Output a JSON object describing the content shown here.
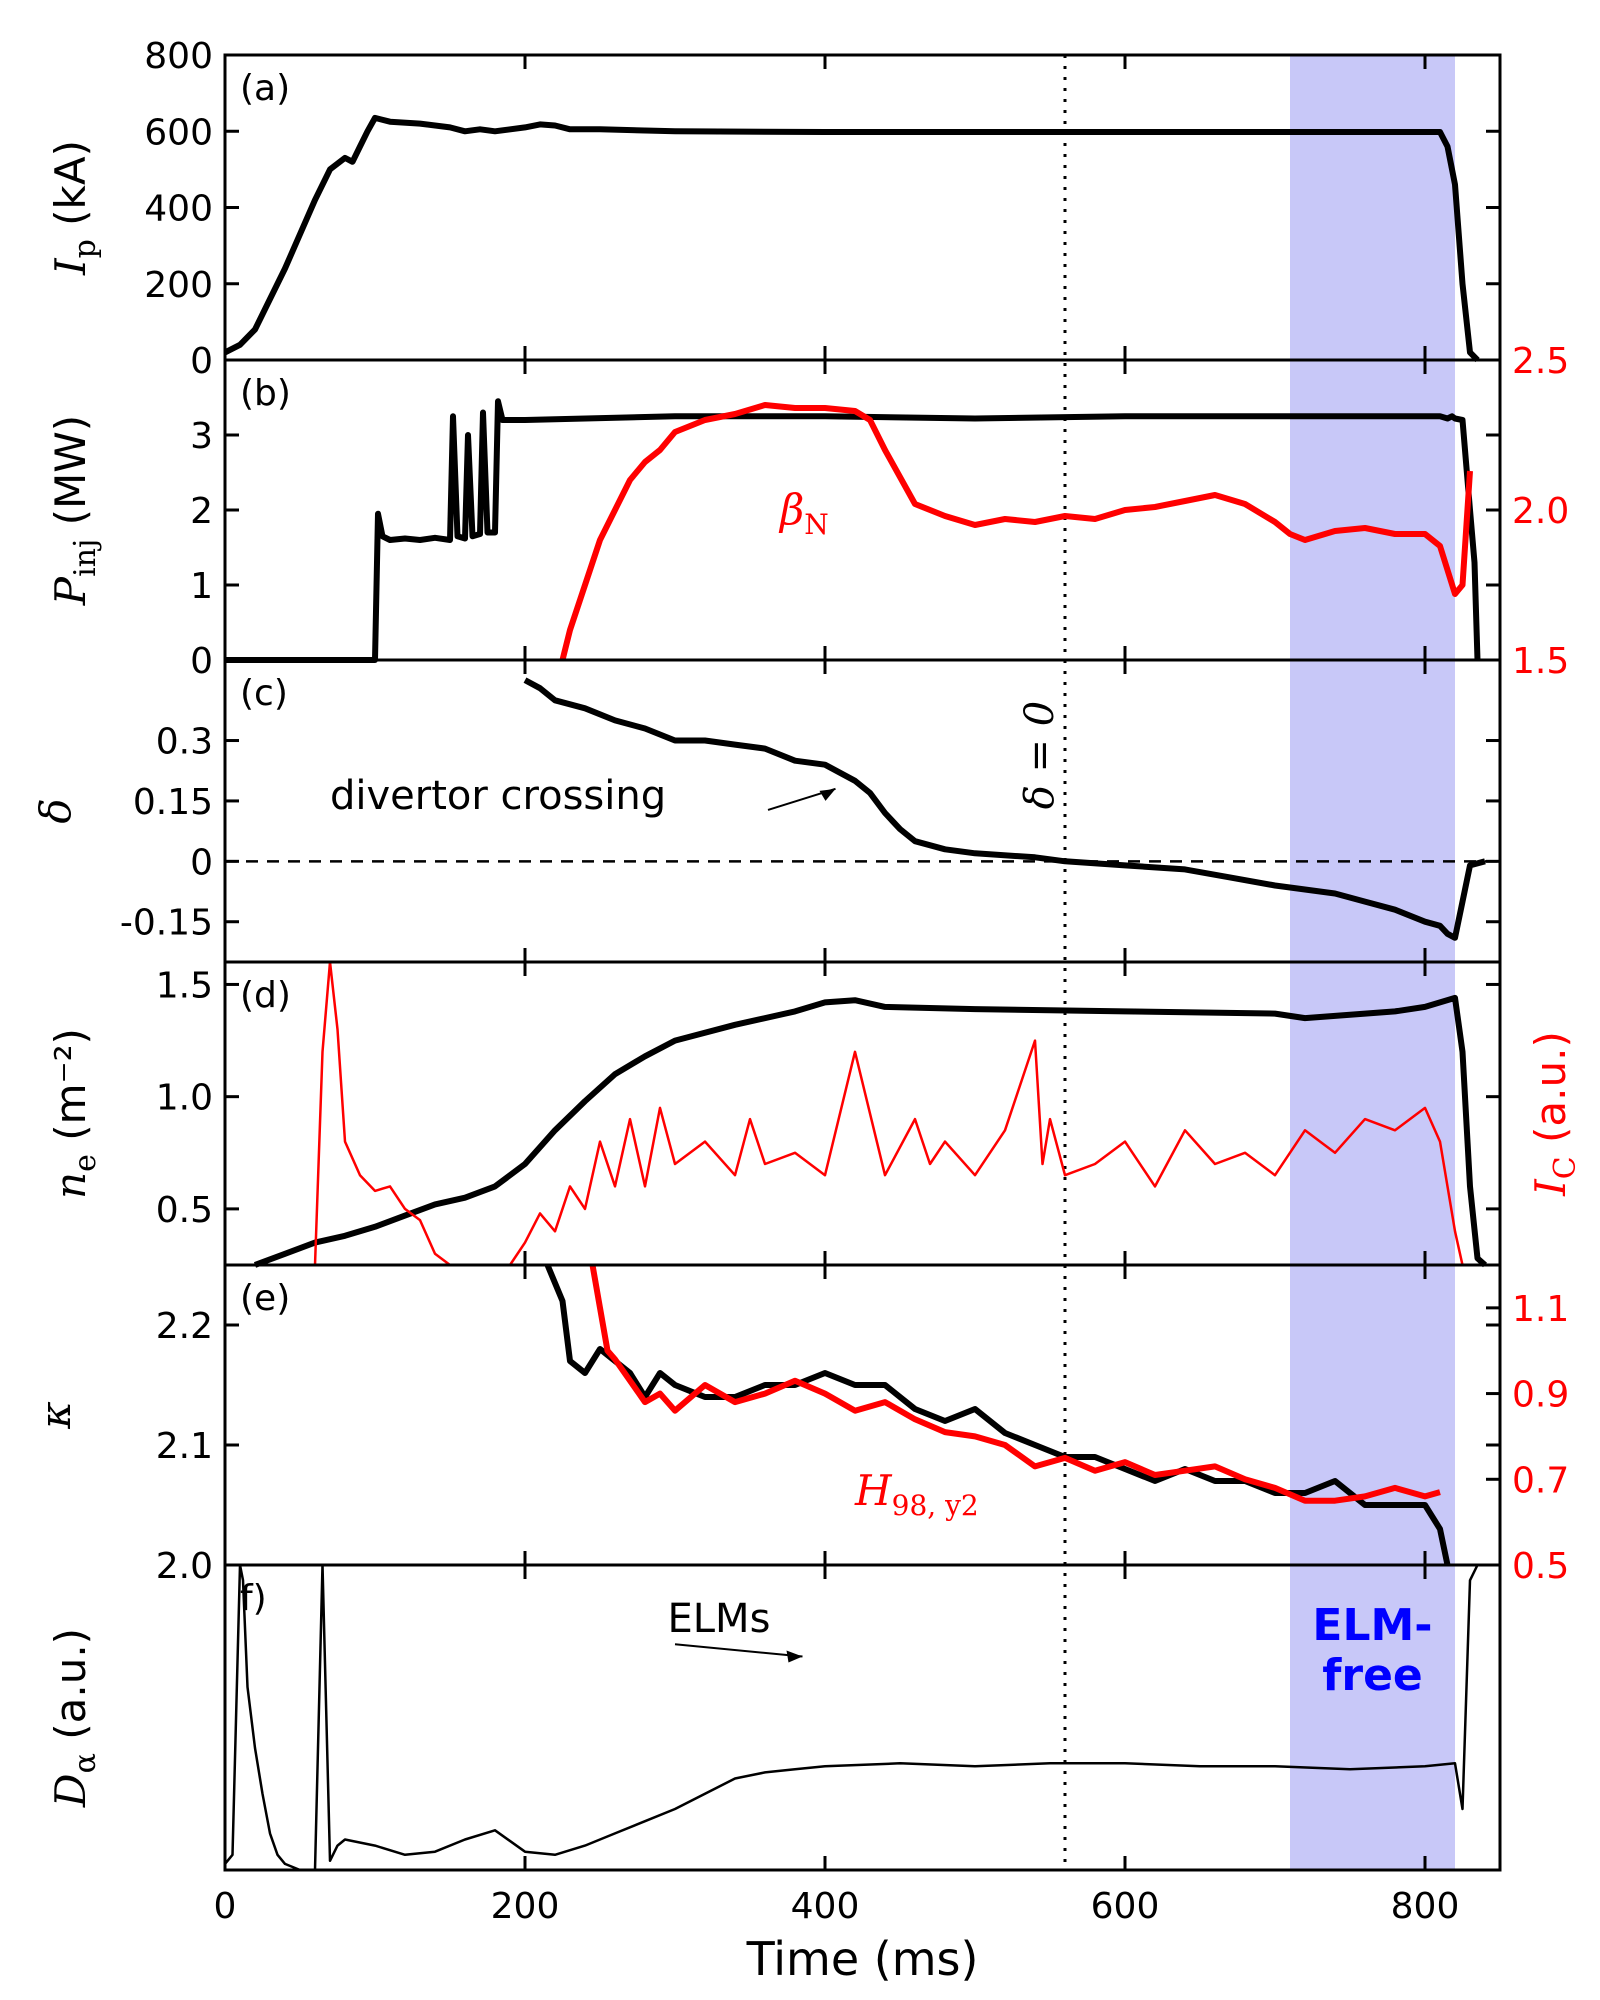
{
  "chart_data": {
    "type": "line",
    "xlabel": "Time (ms)",
    "xlim": [
      0,
      850
    ],
    "xticks": [
      "0",
      "200",
      "400",
      "600",
      "800"
    ],
    "shaded_region": {
      "x": [
        710,
        820
      ],
      "color": "#c8c8f8",
      "label": "ELM-free"
    },
    "vline": {
      "x": 560,
      "label": "δ = 0"
    },
    "colors": {
      "primary": "#000000",
      "secondary": "#ff0000",
      "elm_label": "#0000ff"
    },
    "panels": [
      {
        "id": "a",
        "panel_label": "(a)",
        "ylabel_main": "I",
        "ylabel_sub": "p",
        "ylabel_unit": " (kA)",
        "ylim": [
          0,
          800
        ],
        "yticks": [
          "0",
          "200",
          "400",
          "600",
          "800"
        ],
        "series": [
          {
            "name": "I_p",
            "color": "#000000",
            "x": [
              0,
              10,
              20,
              30,
              40,
              50,
              60,
              70,
              80,
              85,
              90,
              95,
              100,
              110,
              130,
              150,
              160,
              170,
              180,
              200,
              210,
              220,
              230,
              250,
              300,
              400,
              500,
              600,
              700,
              810,
              815,
              820,
              825,
              830,
              835
            ],
            "y": [
              20,
              40,
              80,
              160,
              240,
              330,
              420,
              500,
              530,
              520,
              560,
              600,
              635,
              625,
              620,
              610,
              600,
              605,
              600,
              610,
              618,
              615,
              605,
              605,
              600,
              598,
              598,
              598,
              598,
              598,
              560,
              460,
              200,
              20,
              0
            ]
          }
        ]
      },
      {
        "id": "b",
        "panel_label": "(b)",
        "ylabel_main": "P",
        "ylabel_sub": "inj",
        "ylabel_unit": " (MW)",
        "ylim": [
          0,
          4
        ],
        "yticks": [
          "0",
          "1",
          "2",
          "3"
        ],
        "right_ylim": [
          1.5,
          2.5
        ],
        "right_yticks": [
          "1.5",
          "2.0",
          "2.5"
        ],
        "annotation": "β",
        "annotation_sub": "N",
        "series": [
          {
            "name": "P_inj",
            "color": "#000000",
            "x": [
              0,
              100,
              102,
              105,
              110,
              120,
              130,
              140,
              150,
              152,
              155,
              160,
              162,
              165,
              170,
              172,
              175,
              180,
              182,
              185,
              190,
              200,
              300,
              400,
              500,
              600,
              700,
              810,
              815,
              818,
              820,
              825,
              830,
              833,
              835
            ],
            "y": [
              0,
              0,
              1.95,
              1.65,
              1.6,
              1.62,
              1.6,
              1.63,
              1.6,
              3.25,
              1.65,
              1.62,
              3.0,
              1.65,
              1.68,
              3.3,
              1.7,
              1.7,
              3.45,
              3.2,
              3.2,
              3.2,
              3.25,
              3.25,
              3.22,
              3.25,
              3.25,
              3.25,
              3.22,
              3.25,
              3.22,
              3.2,
              2.0,
              1.3,
              0
            ]
          },
          {
            "name": "β_N",
            "color": "#ff0000",
            "axis": "right",
            "x": [
              225,
              230,
              240,
              250,
              260,
              270,
              280,
              290,
              300,
              320,
              340,
              360,
              380,
              400,
              420,
              430,
              440,
              460,
              480,
              500,
              520,
              540,
              560,
              580,
              600,
              620,
              640,
              660,
              680,
              700,
              710,
              720,
              740,
              760,
              780,
              800,
              810,
              815,
              820,
              825,
              830
            ],
            "y": [
              1.5,
              1.6,
              1.75,
              1.9,
              2.0,
              2.1,
              2.16,
              2.2,
              2.26,
              2.3,
              2.32,
              2.35,
              2.34,
              2.34,
              2.33,
              2.3,
              2.2,
              2.02,
              1.98,
              1.95,
              1.97,
              1.96,
              1.98,
              1.97,
              2.0,
              2.01,
              2.03,
              2.05,
              2.02,
              1.96,
              1.92,
              1.9,
              1.93,
              1.94,
              1.92,
              1.92,
              1.88,
              1.8,
              1.72,
              1.75,
              2.13
            ]
          }
        ]
      },
      {
        "id": "c",
        "panel_label": "(c)",
        "ylabel_main": "δ",
        "ylabel_sub": "",
        "ylabel_unit": "",
        "ylim": [
          -0.25,
          0.5
        ],
        "yticks": [
          "-0.15",
          "0",
          "0.15",
          "0.3"
        ],
        "hline": 0,
        "annotation": "divertor crossing",
        "series": [
          {
            "name": "δ",
            "color": "#000000",
            "x": [
              200,
              210,
              220,
              240,
              260,
              280,
              300,
              320,
              340,
              360,
              380,
              400,
              420,
              430,
              440,
              450,
              460,
              480,
              500,
              540,
              560,
              600,
              640,
              670,
              700,
              720,
              740,
              760,
              780,
              800,
              810,
              815,
              820,
              825,
              830,
              840
            ],
            "y": [
              0.45,
              0.43,
              0.4,
              0.38,
              0.35,
              0.33,
              0.3,
              0.3,
              0.29,
              0.28,
              0.25,
              0.24,
              0.2,
              0.17,
              0.12,
              0.08,
              0.05,
              0.03,
              0.02,
              0.01,
              0.0,
              -0.01,
              -0.02,
              -0.04,
              -0.06,
              -0.07,
              -0.08,
              -0.1,
              -0.12,
              -0.15,
              -0.16,
              -0.18,
              -0.19,
              -0.1,
              -0.01,
              0.0
            ]
          }
        ]
      },
      {
        "id": "d",
        "panel_label": "(d)",
        "ylabel_main": "n",
        "ylabel_sub": "e",
        "ylabel_unit": " (m⁻²)",
        "ylim": [
          0.25,
          1.6
        ],
        "yticks": [
          "0.5",
          "1.0",
          "1.5"
        ],
        "right_ylabel_main": "I",
        "right_ylabel_sub": "C",
        "right_ylabel_unit": " (a.u.)",
        "series": [
          {
            "name": "n_e",
            "color": "#000000",
            "x": [
              20,
              40,
              60,
              80,
              100,
              120,
              140,
              160,
              180,
              200,
              220,
              240,
              260,
              280,
              300,
              340,
              380,
              400,
              420,
              440,
              500,
              600,
              700,
              720,
              740,
              780,
              800,
              820,
              825,
              830,
              835,
              840
            ],
            "y": [
              0.25,
              0.3,
              0.35,
              0.38,
              0.42,
              0.47,
              0.52,
              0.55,
              0.6,
              0.7,
              0.85,
              0.98,
              1.1,
              1.18,
              1.25,
              1.32,
              1.38,
              1.42,
              1.43,
              1.4,
              1.39,
              1.38,
              1.37,
              1.35,
              1.36,
              1.38,
              1.4,
              1.44,
              1.2,
              0.6,
              0.28,
              0.25
            ]
          },
          {
            "name": "I_C",
            "color": "#ff0000",
            "axis": "right",
            "x": [
              60,
              65,
              70,
              75,
              80,
              90,
              100,
              110,
              120,
              130,
              140,
              150,
              170,
              190,
              200,
              210,
              220,
              230,
              240,
              250,
              260,
              270,
              280,
              290,
              300,
              320,
              340,
              350,
              360,
              380,
              400,
              420,
              440,
              460,
              470,
              480,
              500,
              520,
              540,
              545,
              550,
              560,
              580,
              600,
              620,
              640,
              660,
              680,
              700,
              720,
              740,
              760,
              780,
              800,
              810,
              815,
              820,
              825
            ],
            "y": [
              0.25,
              1.2,
              1.6,
              1.3,
              0.8,
              0.65,
              0.58,
              0.6,
              0.5,
              0.45,
              0.3,
              0.22,
              0.15,
              0.2,
              0.35,
              0.48,
              0.4,
              0.6,
              0.5,
              0.8,
              0.6,
              0.9,
              0.6,
              0.95,
              0.7,
              0.8,
              0.65,
              0.9,
              0.7,
              0.75,
              0.65,
              1.2,
              0.65,
              0.9,
              0.7,
              0.8,
              0.65,
              0.85,
              1.25,
              0.7,
              0.9,
              0.65,
              0.7,
              0.8,
              0.6,
              0.85,
              0.7,
              0.75,
              0.65,
              0.85,
              0.75,
              0.9,
              0.85,
              0.95,
              0.8,
              0.6,
              0.4,
              0.25
            ]
          }
        ]
      },
      {
        "id": "e",
        "panel_label": "(e)",
        "ylabel_main": "κ",
        "ylabel_sub": "",
        "ylabel_unit": "",
        "ylim": [
          2.0,
          2.25
        ],
        "yticks": [
          "2.0",
          "2.1",
          "2.2"
        ],
        "right_ylim": [
          0.5,
          1.2
        ],
        "right_yticks": [
          "0.5",
          "0.7",
          "0.9",
          "1.1"
        ],
        "annotation": "H",
        "annotation_sub": "98, y2",
        "series": [
          {
            "name": "κ",
            "color": "#000000",
            "x": [
              215,
              225,
              230,
              240,
              250,
              260,
              270,
              280,
              290,
              300,
              320,
              340,
              360,
              380,
              400,
              420,
              440,
              460,
              480,
              500,
              520,
              540,
              560,
              580,
              600,
              620,
              640,
              660,
              680,
              700,
              720,
              740,
              760,
              780,
              800,
              805,
              810,
              815
            ],
            "y": [
              2.25,
              2.22,
              2.17,
              2.16,
              2.18,
              2.17,
              2.16,
              2.14,
              2.16,
              2.15,
              2.14,
              2.14,
              2.15,
              2.15,
              2.16,
              2.15,
              2.15,
              2.13,
              2.12,
              2.13,
              2.11,
              2.1,
              2.09,
              2.09,
              2.08,
              2.07,
              2.08,
              2.07,
              2.07,
              2.06,
              2.06,
              2.07,
              2.05,
              2.05,
              2.05,
              2.04,
              2.03,
              2.0
            ]
          },
          {
            "name": "H_98,y2",
            "color": "#ff0000",
            "axis": "right",
            "x": [
              245,
              250,
              255,
              260,
              270,
              280,
              290,
              300,
              320,
              340,
              360,
              380,
              400,
              420,
              440,
              460,
              480,
              500,
              520,
              540,
              560,
              580,
              600,
              620,
              640,
              660,
              680,
              700,
              720,
              740,
              760,
              780,
              800,
              810
            ],
            "y": [
              1.2,
              1.1,
              1.0,
              0.98,
              0.93,
              0.88,
              0.9,
              0.86,
              0.92,
              0.88,
              0.9,
              0.93,
              0.9,
              0.86,
              0.88,
              0.84,
              0.81,
              0.8,
              0.78,
              0.73,
              0.75,
              0.72,
              0.74,
              0.71,
              0.72,
              0.73,
              0.7,
              0.68,
              0.65,
              0.65,
              0.66,
              0.68,
              0.66,
              0.67
            ]
          }
        ]
      },
      {
        "id": "f",
        "panel_label": "f)",
        "ylabel_main": "D",
        "ylabel_sub": "α",
        "ylabel_unit": " (a.u.)",
        "ylim": [
          0,
          1
        ],
        "yticks": [],
        "annotation": "ELMs",
        "series": [
          {
            "name": "D_α",
            "color": "#000000",
            "x": [
              0,
              5,
              10,
              12,
              15,
              20,
              25,
              30,
              35,
              40,
              50,
              60,
              65,
              70,
              75,
              80,
              100,
              120,
              140,
              160,
              180,
              200,
              220,
              240,
              260,
              280,
              300,
              320,
              340,
              360,
              380,
              400,
              450,
              500,
              550,
              600,
              650,
              700,
              750,
              800,
              820,
              825,
              830,
              835
            ],
            "y": [
              0.02,
              0.05,
              1.0,
              0.95,
              0.6,
              0.4,
              0.25,
              0.12,
              0.05,
              0.02,
              0.0,
              0.0,
              1.0,
              0.03,
              0.08,
              0.1,
              0.08,
              0.05,
              0.06,
              0.1,
              0.13,
              0.06,
              0.05,
              0.08,
              0.12,
              0.16,
              0.2,
              0.25,
              0.3,
              0.32,
              0.33,
              0.34,
              0.35,
              0.34,
              0.35,
              0.35,
              0.34,
              0.34,
              0.33,
              0.34,
              0.35,
              0.2,
              0.95,
              1.0
            ]
          }
        ]
      }
    ]
  }
}
